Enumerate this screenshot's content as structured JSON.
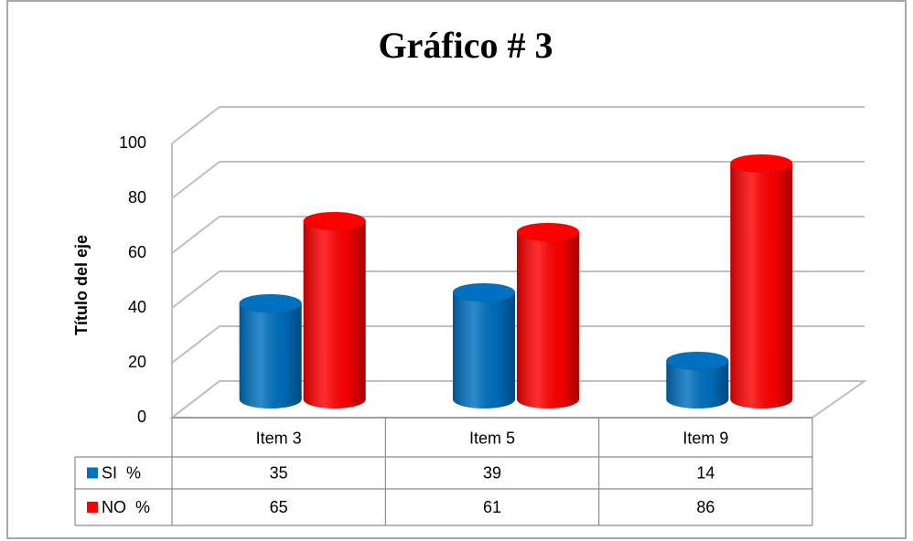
{
  "chart_data": {
    "type": "bar3d",
    "title": "Gráfico # 3",
    "y_axis_label": "Título del eje",
    "categories": [
      "Item 3",
      "Item 5",
      "Item 9"
    ],
    "series": [
      {
        "name": "SI  %",
        "color": "#0070c0",
        "values": [
          35,
          39,
          14
        ]
      },
      {
        "name": "NO  %",
        "color": "#ff0000",
        "values": [
          65,
          61,
          86
        ]
      }
    ],
    "ylim": [
      0,
      100
    ],
    "yticks": [
      0,
      20,
      40,
      60,
      80,
      100
    ],
    "grid": true,
    "legend": "table"
  }
}
